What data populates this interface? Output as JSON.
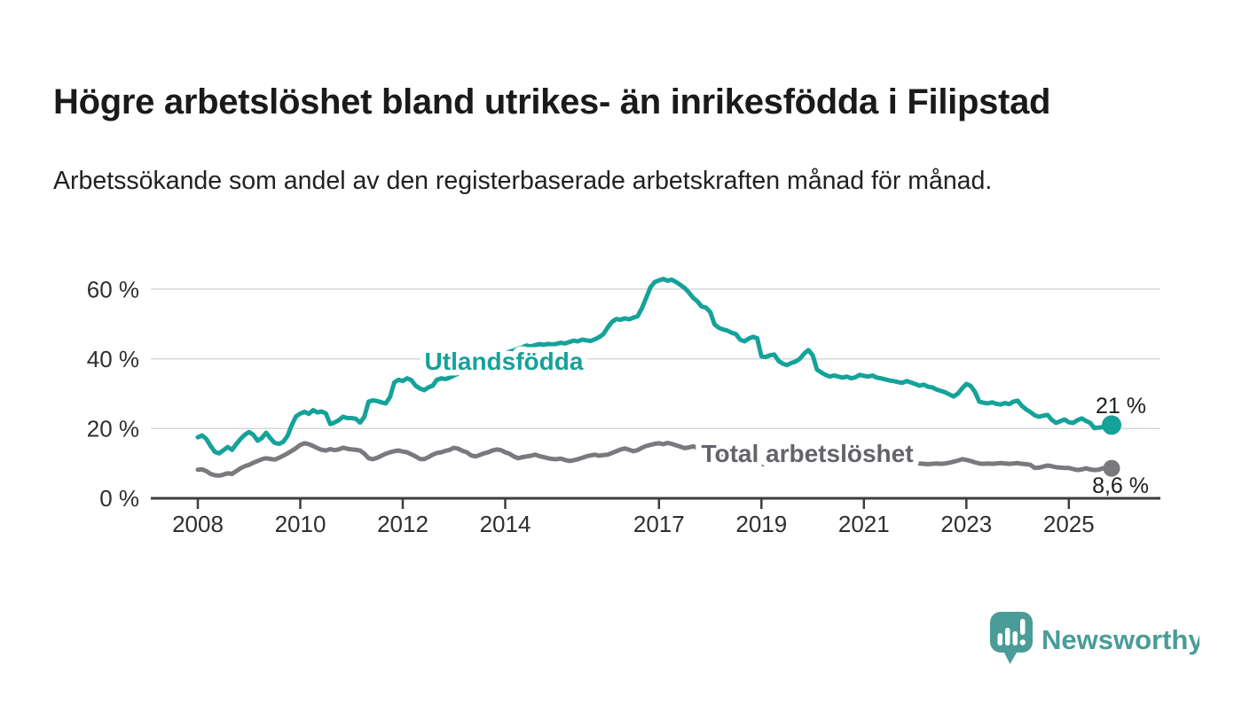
{
  "header": {
    "title": "Högre arbetslöshet bland utrikes- än inrikesfödda i Filipstad",
    "subtitle": "Arbetssökande som andel av den registerbaserade arbetskraften månad för månad."
  },
  "branding": {
    "wordmark": "Newsworthy",
    "logo_icon": "speech-bubble-bar-chart-icon",
    "logo_color": "#4a9c98"
  },
  "colors": {
    "background": "#ffffff",
    "accent_teal": "#15a29a",
    "gray": "#7a797e",
    "value_label": "#1d1d1d"
  },
  "chart_data": {
    "type": "line",
    "title": "Högre arbetslöshet bland utrikes- än inrikesfödda i Filipstad",
    "subtitle": "Arbetssökande som andel av den registerbaserade arbetskraften månad för månad.",
    "unit": "%",
    "grid": "horizontal",
    "x_start": "2008-01",
    "x_end": "2025-11",
    "x_step_months": 1,
    "ylim": [
      0,
      65
    ],
    "y_ticks": [
      0,
      20,
      40,
      60
    ],
    "y_tick_labels": [
      "60 %",
      "40 %",
      "20 %",
      "0 %"
    ],
    "x_tick_labels": [
      "2008",
      "2010",
      "2012",
      "2014",
      "2017",
      "2019",
      "2021",
      "2023",
      "2025"
    ],
    "series": [
      {
        "name": "Utlandsfödda",
        "color": "#15a29a",
        "label_color": "#15a29a",
        "end_label": "21 %",
        "end_value": 21,
        "values": [
          17.5,
          18.0,
          17.0,
          15.0,
          13.3,
          12.9,
          13.8,
          14.7,
          13.9,
          15.5,
          17.0,
          18.2,
          19.0,
          18.2,
          16.5,
          17.3,
          18.8,
          17.2,
          15.9,
          15.6,
          16.2,
          17.9,
          21.0,
          23.5,
          24.3,
          24.8,
          24.2,
          25.3,
          24.6,
          24.9,
          24.3,
          21.3,
          21.7,
          22.4,
          23.4,
          23.0,
          23.0,
          22.8,
          21.7,
          23.4,
          27.7,
          28.1,
          27.9,
          27.5,
          27.2,
          29.0,
          33.2,
          34.0,
          33.6,
          34.4,
          33.9,
          32.3,
          31.5,
          31.0,
          31.8,
          32.3,
          34.0,
          34.4,
          34.2,
          34.6,
          35.2,
          35.8,
          36.3,
          36.8,
          37.2,
          37.8,
          38.3,
          38.8,
          39.4,
          40.0,
          40.5,
          41.0,
          41.5,
          42.0,
          42.4,
          42.9,
          43.3,
          43.8,
          43.5,
          43.9,
          44.2,
          44.0,
          44.3,
          44.1,
          44.3,
          44.6,
          44.4,
          44.8,
          45.2,
          45.0,
          45.5,
          45.3,
          45.1,
          45.6,
          46.2,
          47.1,
          49.0,
          50.6,
          51.4,
          51.2,
          51.6,
          51.3,
          51.8,
          52.2,
          54.5,
          57.5,
          60.5,
          62.0,
          62.5,
          62.9,
          62.4,
          62.7,
          62.0,
          61.2,
          60.3,
          59.0,
          57.5,
          56.5,
          55.0,
          54.7,
          53.4,
          49.9,
          48.9,
          48.4,
          48.1,
          47.5,
          47.1,
          45.5,
          45.0,
          45.8,
          46.3,
          45.9,
          40.7,
          40.5,
          41.0,
          41.2,
          39.4,
          38.6,
          38.2,
          38.8,
          39.2,
          40.0,
          41.5,
          42.5,
          41.0,
          36.9,
          36.1,
          35.4,
          34.9,
          35.2,
          34.9,
          34.6,
          34.9,
          34.4,
          34.7,
          35.4,
          35.1,
          34.9,
          35.2,
          34.6,
          34.4,
          34.1,
          33.8,
          33.6,
          33.3,
          33.1,
          33.6,
          33.2,
          32.8,
          32.3,
          32.6,
          32.0,
          31.8,
          31.2,
          30.8,
          30.4,
          29.8,
          29.2,
          30.0,
          31.5,
          32.8,
          32.2,
          30.5,
          27.7,
          27.4,
          27.2,
          27.5,
          27.1,
          26.9,
          27.3,
          27.0,
          27.7,
          28.0,
          26.5,
          25.5,
          24.7,
          23.8,
          23.4,
          23.7,
          23.9,
          22.5,
          21.6,
          22.1,
          22.6,
          21.8,
          21.6,
          22.4,
          22.9,
          22.2,
          21.6,
          20.1,
          20.3,
          20.4,
          20.7,
          21.0
        ]
      },
      {
        "name": "Total arbetslöshet",
        "color": "#7a797e",
        "label_color": "#63636a",
        "end_label": "8,6 %",
        "end_value": 8.6,
        "values": [
          8.2,
          8.3,
          7.8,
          7.0,
          6.6,
          6.5,
          6.8,
          7.2,
          7.0,
          7.8,
          8.6,
          9.2,
          9.6,
          10.2,
          10.7,
          11.2,
          11.5,
          11.3,
          11.1,
          11.6,
          12.2,
          12.9,
          13.6,
          14.4,
          15.3,
          15.8,
          15.5,
          15.0,
          14.4,
          13.9,
          13.7,
          14.1,
          13.8,
          14.0,
          14.5,
          14.2,
          14.0,
          13.9,
          13.7,
          12.8,
          11.5,
          11.2,
          11.6,
          12.2,
          12.8,
          13.2,
          13.5,
          13.7,
          13.4,
          13.2,
          12.6,
          12.0,
          11.3,
          11.2,
          11.8,
          12.5,
          13.0,
          13.2,
          13.6,
          13.9,
          14.5,
          14.2,
          13.6,
          13.2,
          12.3,
          12.0,
          12.4,
          12.9,
          13.2,
          13.7,
          14.0,
          13.8,
          13.2,
          12.8,
          12.0,
          11.5,
          11.8,
          12.0,
          12.2,
          12.5,
          12.1,
          11.8,
          11.5,
          11.3,
          11.2,
          11.4,
          11.0,
          10.7,
          10.9,
          11.2,
          11.6,
          12.0,
          12.3,
          12.5,
          12.2,
          12.4,
          12.5,
          13.0,
          13.5,
          14.0,
          14.3,
          13.9,
          13.5,
          13.8,
          14.5,
          15.0,
          15.3,
          15.6,
          15.8,
          15.5,
          15.9,
          15.6,
          15.2,
          14.8,
          14.4,
          14.6,
          14.9,
          14.5,
          14.0,
          13.6,
          13.2,
          12.8,
          12.4,
          12.0,
          11.7,
          11.4,
          11.2,
          10.9,
          10.7,
          10.4,
          10.2,
          10.0,
          9.9,
          9.7,
          9.8,
          9.6,
          9.5,
          9.7,
          9.6,
          9.8,
          9.7,
          9.9,
          10.0,
          10.2,
          10.5,
          10.8,
          11.2,
          11.6,
          11.8,
          11.5,
          11.3,
          11.1,
          10.9,
          10.8,
          10.6,
          10.7,
          10.8,
          10.6,
          10.5,
          10.4,
          10.5,
          10.3,
          10.4,
          10.2,
          10.5,
          10.7,
          10.4,
          10.2,
          10.1,
          10.0,
          9.9,
          9.8,
          9.9,
          10.0,
          9.9,
          10.0,
          10.2,
          10.5,
          10.8,
          11.2,
          11.0,
          10.7,
          10.3,
          10.0,
          9.9,
          10.0,
          9.9,
          10.0,
          10.1,
          10.0,
          9.9,
          10.0,
          10.1,
          9.9,
          9.8,
          9.6,
          8.7,
          8.8,
          9.1,
          9.4,
          9.2,
          8.9,
          8.8,
          8.7,
          8.7,
          8.4,
          8.1,
          8.3,
          8.6,
          8.3,
          8.1,
          8.2,
          8.6,
          8.9,
          8.6
        ]
      }
    ]
  }
}
